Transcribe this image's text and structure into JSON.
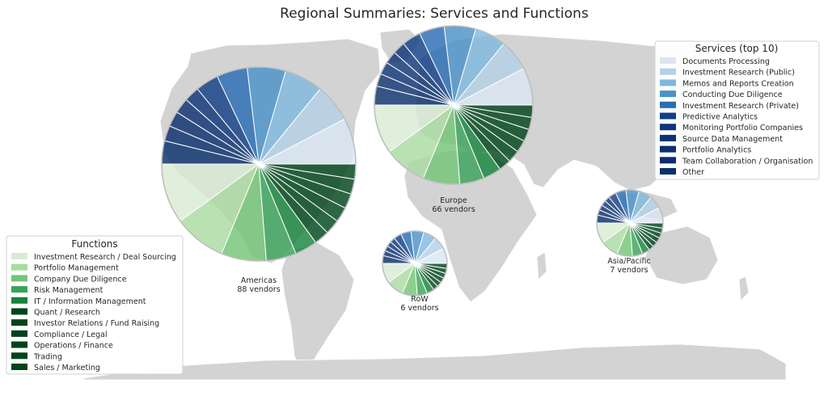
{
  "chart_data": {
    "type": "pie",
    "title": "Regional Summaries: Services and Functions",
    "regions": [
      {
        "name": "Americas",
        "vendors_label": "88 vendors",
        "vendors": 88
      },
      {
        "name": "Europe",
        "vendors_label": "66 vendors",
        "vendors": 66
      },
      {
        "name": "RoW",
        "vendors_label": "6 vendors",
        "vendors": 6
      },
      {
        "name": "Asia/Pacific",
        "vendors_label": "7 vendors",
        "vendors": 7
      }
    ],
    "services_legend": {
      "title": "Services (top 10)",
      "placement": "top-right",
      "items": [
        {
          "label": "Documents Processing",
          "color": "#dbe6f3"
        },
        {
          "label": "Investment Research (Public)",
          "color": "#b3d1e6"
        },
        {
          "label": "Memos and Reports Creation",
          "color": "#80b8de"
        },
        {
          "label": "Conducting Due Diligence",
          "color": "#4a93c9"
        },
        {
          "label": "Investment Research (Private)",
          "color": "#2a6db5"
        },
        {
          "label": "Predictive Analytics",
          "color": "#123e86"
        },
        {
          "label": "Monitoring Portfolio Companies",
          "color": "#0f3578"
        },
        {
          "label": "Source Data Management",
          "color": "#0d3273"
        },
        {
          "label": "Portfolio Analytics",
          "color": "#0b306e"
        },
        {
          "label": "Team Collaboration / Organisation",
          "color": "#0a2e6b"
        },
        {
          "label": "Other",
          "color": "#08306b"
        }
      ]
    },
    "functions_legend": {
      "title": "Functions",
      "placement": "lower-left",
      "items": [
        {
          "label": "Investment Research / Deal Sourcing",
          "color": "#d8ecd3"
        },
        {
          "label": "Portfolio Management",
          "color": "#a9dba0"
        },
        {
          "label": "Company Due Diligence",
          "color": "#74c476"
        },
        {
          "label": "Risk Management",
          "color": "#3aa35a"
        },
        {
          "label": "IT / Information Management",
          "color": "#17843d"
        },
        {
          "label": "Quant / Research",
          "color": "#00461a"
        },
        {
          "label": "Investor Relations / Fund Raising",
          "color": "#00461a"
        },
        {
          "label": "Compliance / Legal",
          "color": "#00441b"
        },
        {
          "label": "Operations / Finance",
          "color": "#00441b"
        },
        {
          "label": "Trading",
          "color": "#00441b"
        },
        {
          "label": "Sales / Marketing",
          "color": "#00441b"
        }
      ]
    }
  }
}
